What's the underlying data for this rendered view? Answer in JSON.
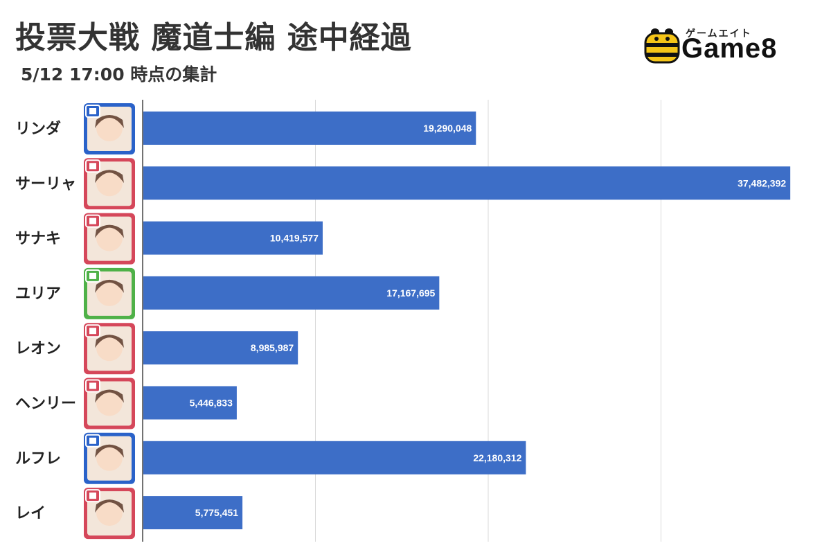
{
  "header": {
    "title": "投票大戦 魔道士編 途中経過",
    "subtitle": "5/12 17:00 時点の集計"
  },
  "logo": {
    "kana": "ゲームエイト",
    "word": "Game8"
  },
  "colors": {
    "bar": "#3d6ec7",
    "grid": "#d9d9d9",
    "axis": "#444444"
  },
  "chart_data": {
    "type": "bar",
    "orientation": "horizontal",
    "categories": [
      "リンダ",
      "サーリャ",
      "サナキ",
      "ユリア",
      "レオン",
      "ヘンリー",
      "ルフレ",
      "レイ"
    ],
    "values": [
      19290048,
      37482392,
      10419577,
      17167695,
      8985987,
      5446833,
      22180312,
      5775451
    ],
    "value_labels": [
      "19,290,048",
      "37,482,392",
      "10,419,577",
      "17,167,695",
      "8,985,987",
      "5,446,833",
      "22,180,312",
      "5,775,451"
    ],
    "icon_frame_colors": [
      "#2a62c9",
      "#d5475a",
      "#d5475a",
      "#4fb148",
      "#d5475a",
      "#d5475a",
      "#2a62c9",
      "#d5475a"
    ],
    "xlim": [
      0,
      40000000
    ],
    "gridlines": [
      10000000,
      20000000,
      30000000
    ],
    "grid": true,
    "legend": "none",
    "title": "投票大戦 魔道士編 途中経過",
    "xlabel": "",
    "ylabel": ""
  }
}
